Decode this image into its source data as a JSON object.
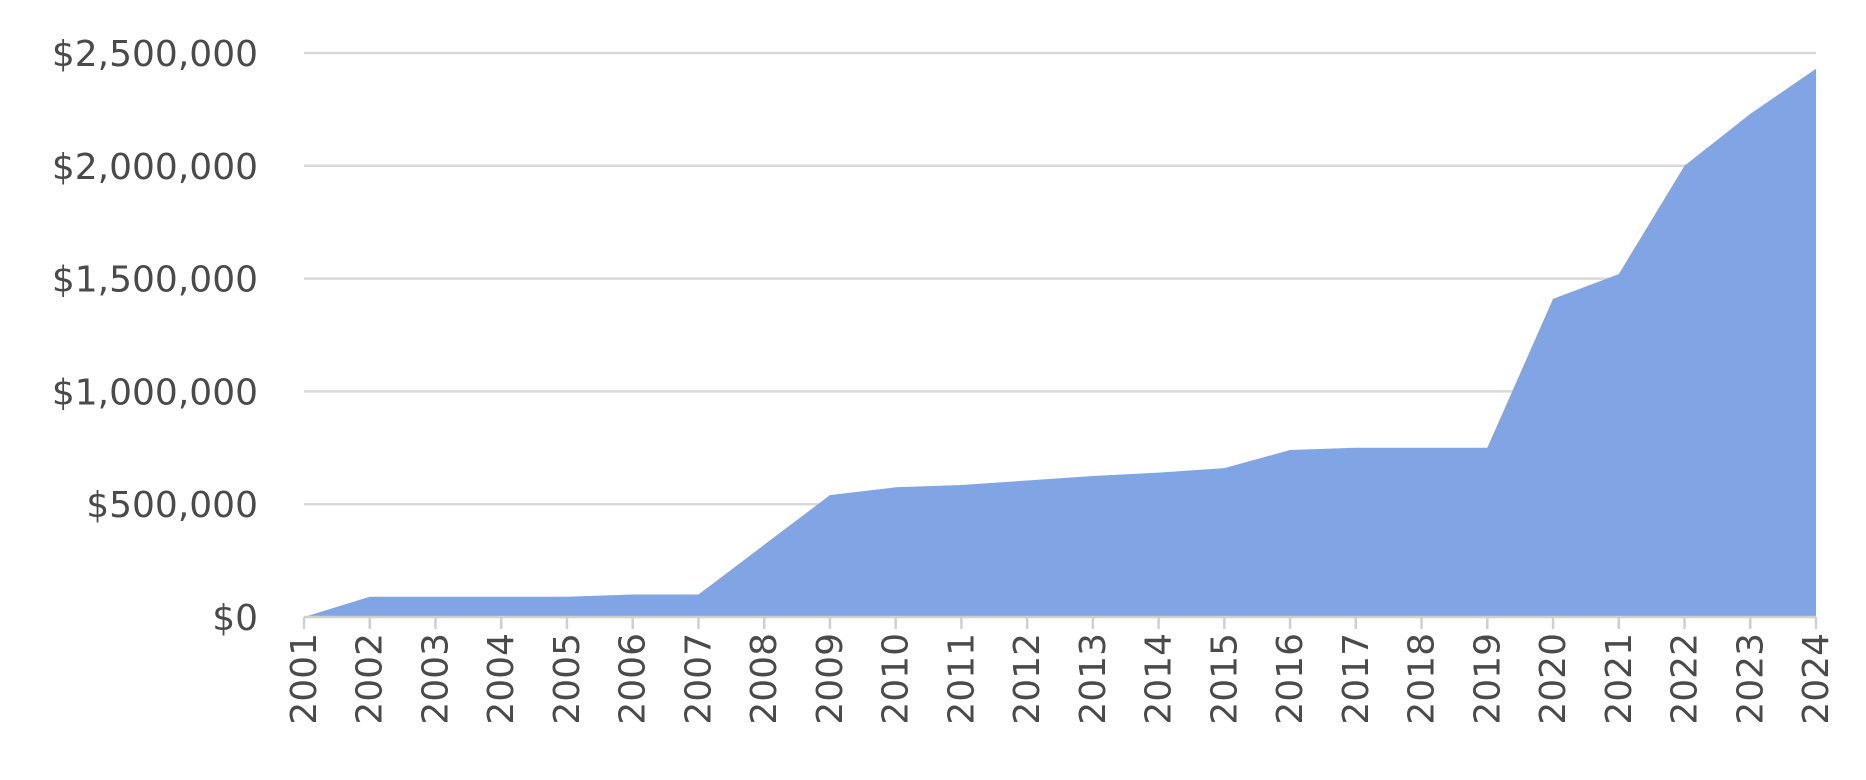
{
  "chart_data": {
    "type": "area",
    "title": "",
    "xlabel": "",
    "ylabel": "",
    "x": [
      "2001",
      "2002",
      "2003",
      "2004",
      "2005",
      "2006",
      "2007",
      "2008",
      "2009",
      "2010",
      "2011",
      "2012",
      "2013",
      "2014",
      "2015",
      "2016",
      "2017",
      "2018",
      "2019",
      "2020",
      "2021",
      "2022",
      "2023",
      "2024"
    ],
    "series": [
      {
        "values": [
          0,
          90000,
          90000,
          90000,
          90000,
          100000,
          100000,
          320000,
          540000,
          575000,
          585000,
          605000,
          625000,
          640000,
          660000,
          740000,
          750000,
          750000,
          750000,
          1410000,
          1520000,
          2000000,
          2230000,
          2430000
        ],
        "color": "#81a5e4"
      }
    ],
    "ylim": [
      0,
      2500000
    ],
    "y_ticks": [
      0,
      500000,
      1000000,
      1500000,
      2000000,
      2500000
    ],
    "y_tick_labels": [
      "$0",
      "$500,000",
      "$1,000,000",
      "$1,500,000",
      "$2,000,000",
      "$2,500,000"
    ],
    "grid": true,
    "legend": "none"
  }
}
